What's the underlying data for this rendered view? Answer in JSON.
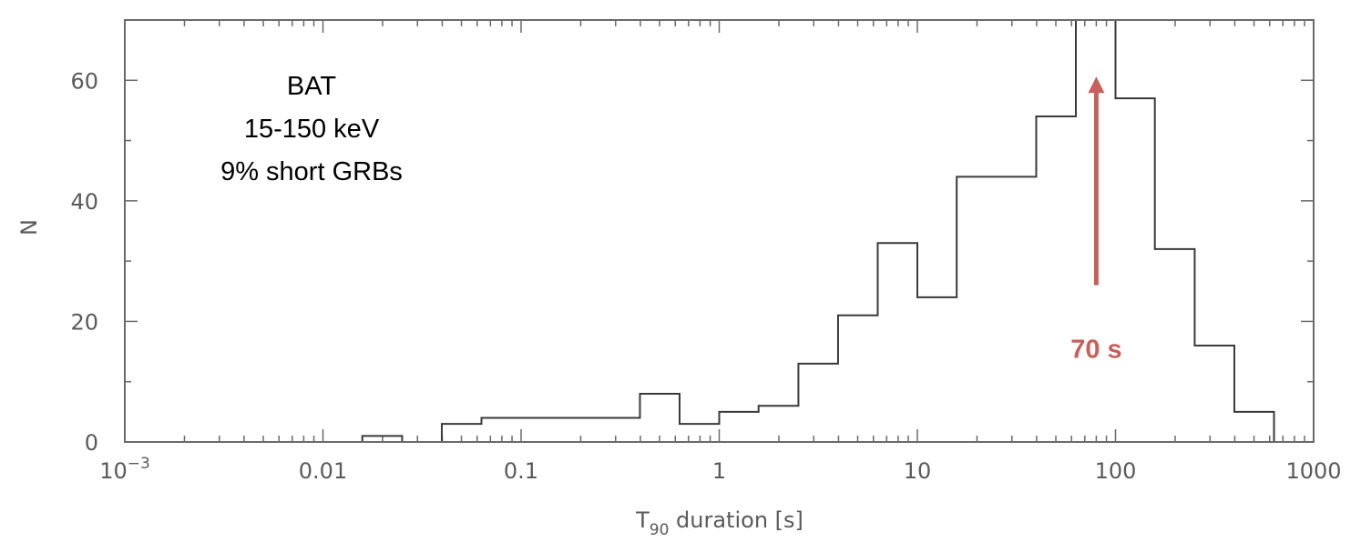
{
  "chart_data": {
    "type": "bar",
    "style": "step-histogram",
    "x_scale": "log",
    "xlim": [
      0.001,
      1000
    ],
    "ylim": [
      0,
      70
    ],
    "xlabel_main": "T",
    "xlabel_sub": "90",
    "xlabel_rest": " duration [s]",
    "ylabel": "N",
    "x_ticks": [
      {
        "value": 0.001,
        "label_base": "10",
        "label_exp": "−3"
      },
      {
        "value": 0.01,
        "label": "0.01"
      },
      {
        "value": 0.1,
        "label": "0.1"
      },
      {
        "value": 1,
        "label": "1"
      },
      {
        "value": 10,
        "label": "10"
      },
      {
        "value": 100,
        "label": "100"
      },
      {
        "value": 1000,
        "label": "1000"
      }
    ],
    "y_ticks": [
      {
        "value": 0,
        "label": "0"
      },
      {
        "value": 20,
        "label": "20"
      },
      {
        "value": 40,
        "label": "40"
      },
      {
        "value": 60,
        "label": "60"
      }
    ],
    "bins": [
      {
        "x0": 0.001,
        "x1": 0.0158,
        "count": 0
      },
      {
        "x0": 0.0158,
        "x1": 0.0251,
        "count": 1
      },
      {
        "x0": 0.0251,
        "x1": 0.0398,
        "count": 0
      },
      {
        "x0": 0.0398,
        "x1": 0.0631,
        "count": 3
      },
      {
        "x0": 0.0631,
        "x1": 0.1,
        "count": 4
      },
      {
        "x0": 0.1,
        "x1": 0.158,
        "count": 4
      },
      {
        "x0": 0.158,
        "x1": 0.251,
        "count": 4
      },
      {
        "x0": 0.251,
        "x1": 0.398,
        "count": 4
      },
      {
        "x0": 0.398,
        "x1": 0.631,
        "count": 8
      },
      {
        "x0": 0.631,
        "x1": 1.0,
        "count": 3
      },
      {
        "x0": 1.0,
        "x1": 1.58,
        "count": 5
      },
      {
        "x0": 1.58,
        "x1": 2.51,
        "count": 6
      },
      {
        "x0": 2.51,
        "x1": 3.98,
        "count": 13
      },
      {
        "x0": 3.98,
        "x1": 6.31,
        "count": 21
      },
      {
        "x0": 6.31,
        "x1": 10.0,
        "count": 33
      },
      {
        "x0": 10.0,
        "x1": 15.8,
        "count": 24
      },
      {
        "x0": 15.8,
        "x1": 25.1,
        "count": 44
      },
      {
        "x0": 25.1,
        "x1": 39.8,
        "count": 44
      },
      {
        "x0": 39.8,
        "x1": 63.1,
        "count": 54
      },
      {
        "x0": 63.1,
        "x1": 100,
        "count": 70
      },
      {
        "x0": 100,
        "x1": 158,
        "count": 57
      },
      {
        "x0": 158,
        "x1": 251,
        "count": 32
      },
      {
        "x0": 251,
        "x1": 398,
        "count": 16
      },
      {
        "x0": 398,
        "x1": 631,
        "count": 5
      },
      {
        "x0": 631,
        "x1": 1000,
        "count": 0
      }
    ],
    "annotation_lines": [
      "BAT",
      "15-150 keV",
      "9% short GRBs"
    ],
    "arrow": {
      "x": 80,
      "y_from": 26,
      "y_to": 60,
      "label": "70 s",
      "color": "#c95f5b"
    },
    "line_color": "#3a3a3a",
    "axis_color": "#6a6a6a"
  }
}
